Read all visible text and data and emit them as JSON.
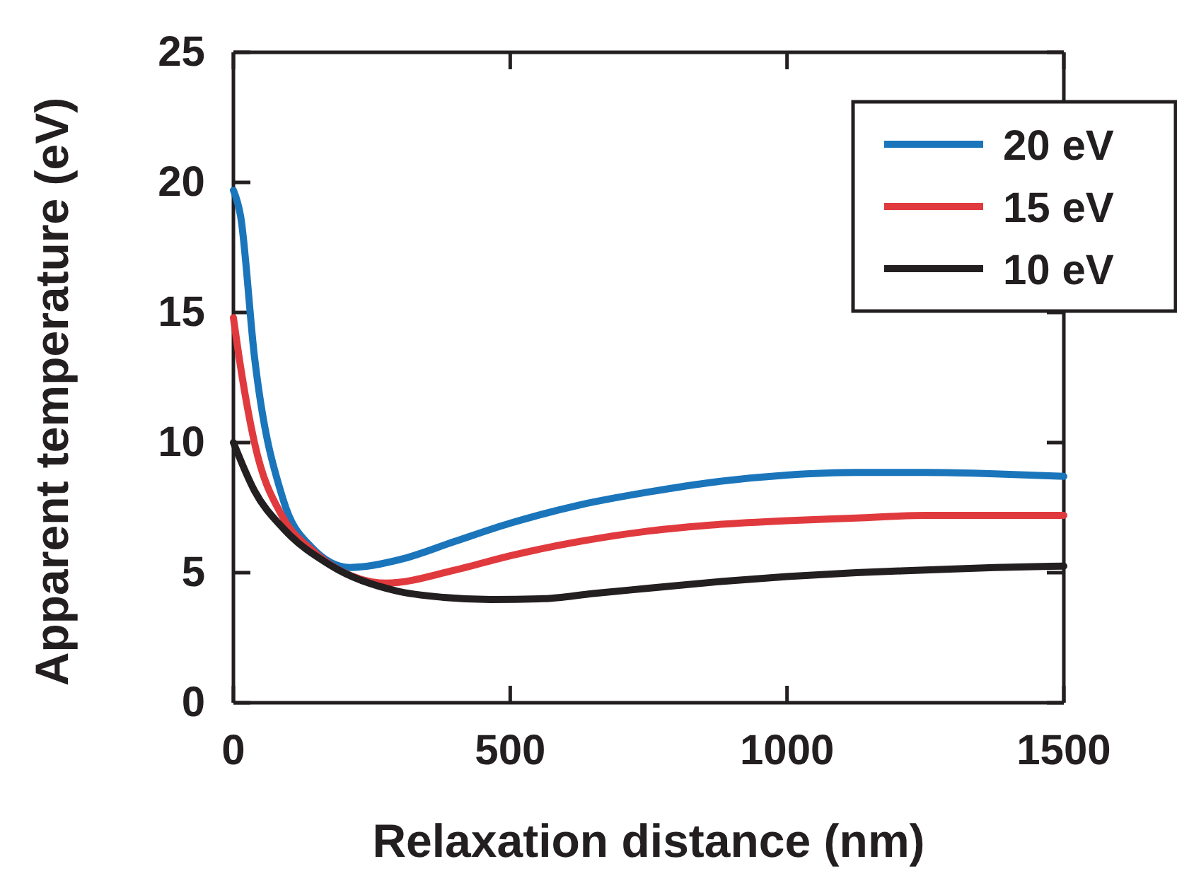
{
  "chart_data": {
    "type": "line",
    "xlabel": "Relaxation distance (nm)",
    "ylabel": "Apparent temperature (eV)",
    "xlim": [
      0,
      1500
    ],
    "ylim": [
      0,
      25
    ],
    "xticks": [
      0,
      500,
      1000,
      1500
    ],
    "yticks": [
      0,
      5,
      10,
      15,
      20,
      25
    ],
    "grid": false,
    "legend": "top right",
    "line_style": "solid",
    "marker": "none",
    "series": [
      {
        "name": "20 eV",
        "color": "#1a75bb",
        "x": [
          0,
          13,
          38,
          90,
          140,
          210,
          300,
          400,
          500,
          625,
          750,
          875,
          1000,
          1125,
          1250,
          1375,
          1500
        ],
        "values": [
          19.7,
          18.7,
          13.3,
          7.8,
          6.0,
          5.2,
          5.5,
          6.2,
          6.9,
          7.6,
          8.1,
          8.5,
          8.75,
          8.85,
          8.85,
          8.8,
          8.7
        ]
      },
      {
        "name": "15 eV",
        "color": "#e03a3e",
        "x": [
          0,
          13,
          38,
          90,
          140,
          200,
          276,
          400,
          500,
          625,
          750,
          875,
          1000,
          1125,
          1250,
          1375,
          1500
        ],
        "values": [
          14.8,
          12.9,
          10.0,
          7.1,
          5.9,
          5.0,
          4.6,
          5.1,
          5.65,
          6.2,
          6.6,
          6.85,
          7.0,
          7.1,
          7.2,
          7.2,
          7.2
        ]
      },
      {
        "name": "10 eV",
        "color": "#231f20",
        "x": [
          0,
          38,
          90,
          174,
          294,
          380,
          465,
          560,
          650,
          750,
          875,
          1000,
          1125,
          1250,
          1375,
          1500
        ],
        "values": [
          10.0,
          8.15,
          6.7,
          5.3,
          4.3,
          4.05,
          3.97,
          4.0,
          4.2,
          4.4,
          4.65,
          4.85,
          5.0,
          5.1,
          5.2,
          5.25
        ]
      }
    ]
  }
}
